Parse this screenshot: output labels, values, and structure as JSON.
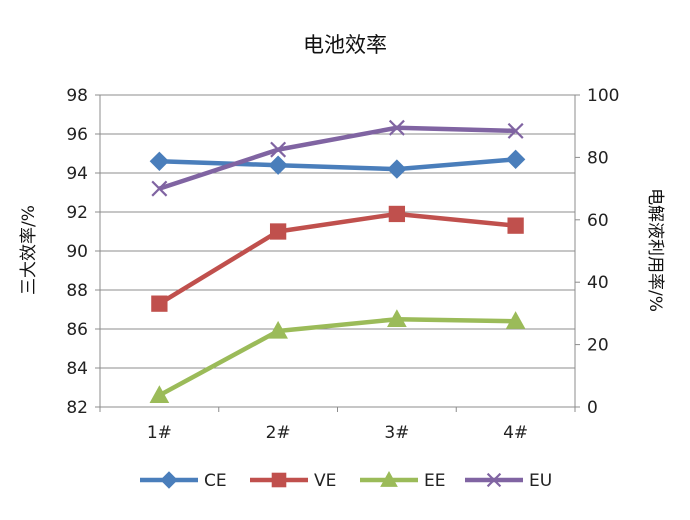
{
  "chart_data": {
    "type": "line",
    "title": "电池效率",
    "categories": [
      "1#",
      "2#",
      "3#",
      "4#"
    ],
    "y_left": {
      "label": "三大效率/%",
      "min": 82,
      "max": 98,
      "step": 2,
      "ticks": [
        "82",
        "84",
        "86",
        "88",
        "90",
        "92",
        "94",
        "96",
        "98"
      ]
    },
    "y_right": {
      "label": "电解液利用率/%",
      "min": 0,
      "max": 100,
      "step": 20,
      "ticks": [
        "0",
        "20",
        "40",
        "60",
        "80",
        "100"
      ]
    },
    "grid": true,
    "legend_position": "bottom",
    "series": [
      {
        "name": "CE",
        "axis": "left",
        "values": [
          94.6,
          94.4,
          94.2,
          94.7
        ],
        "color": "#4a7ebb",
        "marker": "diamond"
      },
      {
        "name": "VE",
        "axis": "left",
        "values": [
          87.3,
          91.0,
          91.9,
          91.3
        ],
        "color": "#c0504d",
        "marker": "square"
      },
      {
        "name": "EE",
        "axis": "left",
        "values": [
          82.6,
          85.9,
          86.5,
          86.4
        ],
        "color": "#9bbb59",
        "marker": "triangle"
      },
      {
        "name": "EU",
        "axis": "right",
        "values": [
          70,
          82.5,
          89.5,
          88.5
        ],
        "color": "#8064a2",
        "marker": "x"
      }
    ]
  }
}
